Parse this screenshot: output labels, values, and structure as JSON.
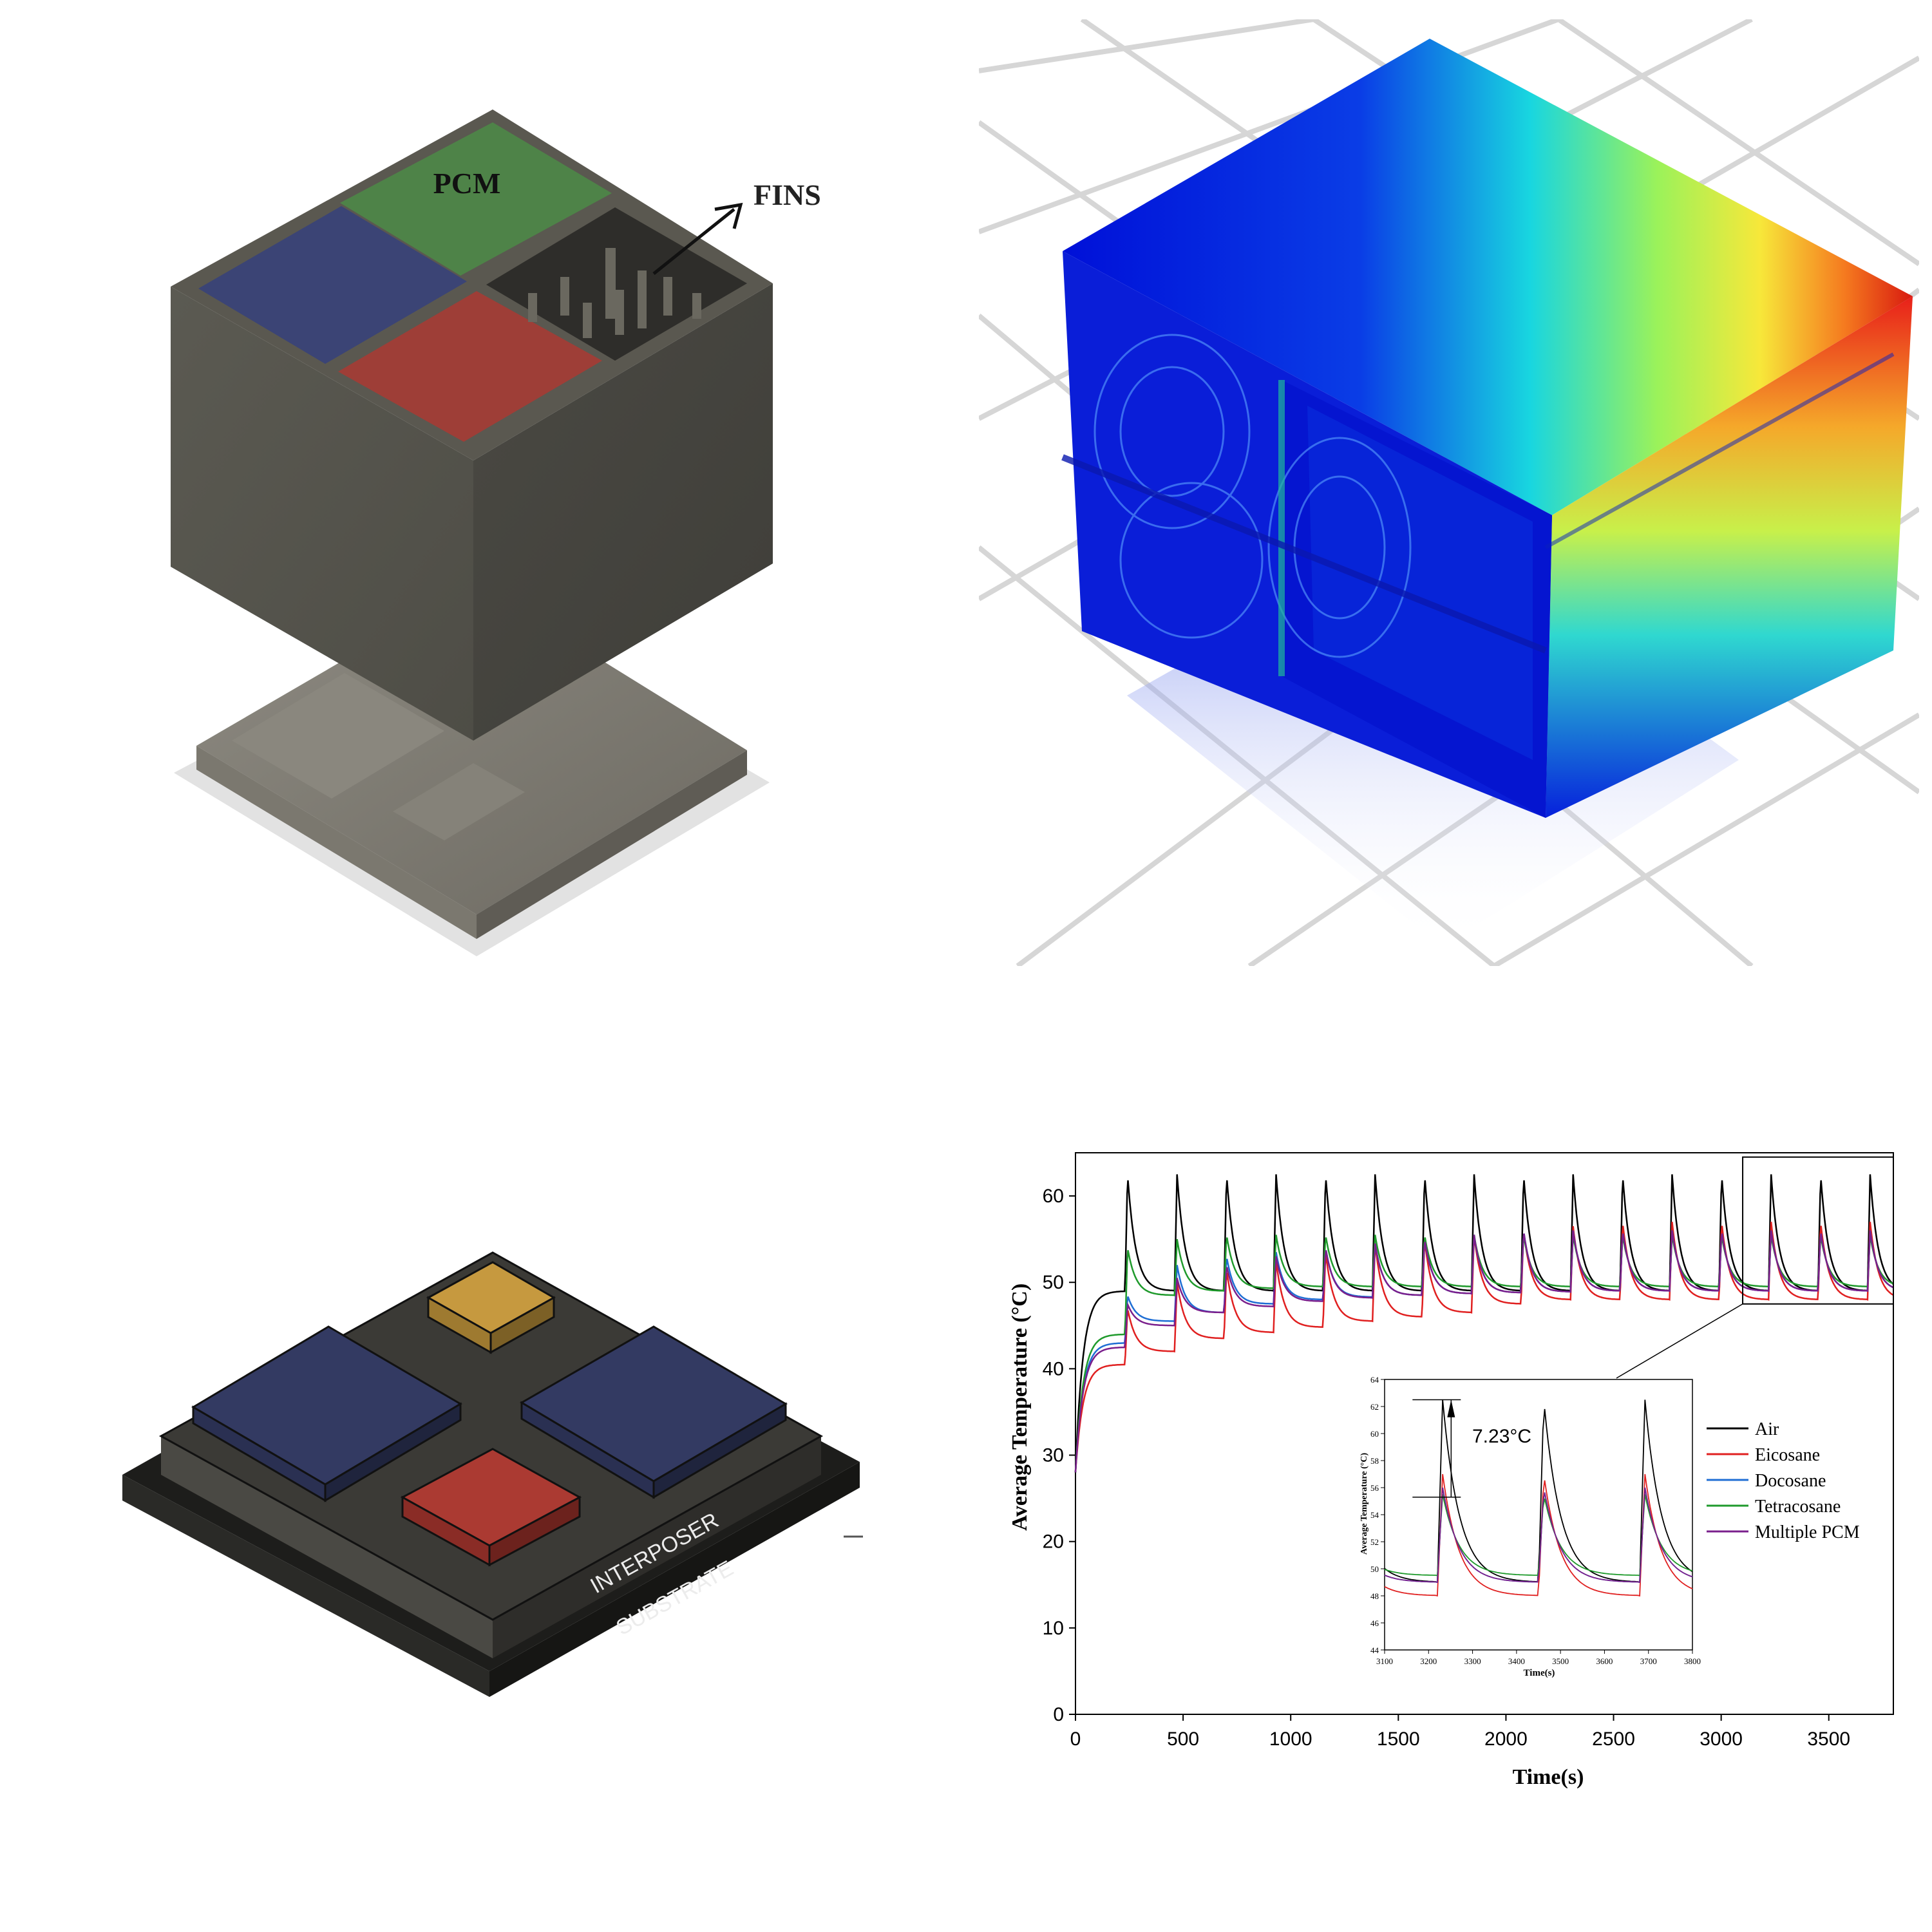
{
  "colors": {
    "housing": "#4f4e47",
    "pcm_green": "#4e8147",
    "pcm_blue": "#3a4372",
    "pcm_red": "#9d3d36",
    "chip_gold": "#b08a3e",
    "air": "#000000",
    "eicosane": "#e02020",
    "docosane": "#1f6ed4",
    "tetracosane": "#1f9a2c",
    "multiple_pcm": "#7a1f8c"
  },
  "panel_cad": {
    "pcm_label": "PCM",
    "fins_label": "FINS"
  },
  "panel_package": {
    "interposer_label": "INTERPOSER",
    "substrate_label": "SUBSTRATE"
  },
  "chart_data": {
    "type": "line",
    "xlabel": "Time(s)",
    "ylabel": "Average Temperature (°C)",
    "xlim": [
      0,
      3800
    ],
    "ylim": [
      0,
      65
    ],
    "xticks": [
      0,
      500,
      1000,
      1500,
      2000,
      2500,
      3000,
      3500
    ],
    "yticks": [
      0,
      10,
      20,
      30,
      40,
      50,
      60
    ],
    "grid": false,
    "legend_position": "right, below inset",
    "cycle_period_s": 230,
    "series": [
      {
        "name": "Air",
        "color": "#000000",
        "peaks": [
          62.5,
          62.5,
          62.5,
          62.5,
          62.5,
          62.5,
          62.5,
          62.5,
          62.5,
          62.5,
          62.5,
          62.5,
          62.5,
          62.5,
          62.5,
          62.5
        ],
        "troughs": [
          49.0,
          49.0,
          49.0,
          49.0,
          49.0,
          49.0,
          49.0,
          49.0,
          49.0,
          49.0,
          49.0,
          49.0,
          49.0,
          49.0,
          49.0,
          49.0
        ]
      },
      {
        "name": "Eicosane",
        "color": "#e02020",
        "peaks": [
          47.0,
          50.0,
          51.5,
          52.5,
          53.5,
          54.5,
          55.0,
          55.5,
          56.0,
          56.5,
          57.0,
          57.0,
          57.0,
          57.0,
          57.0,
          57.0
        ],
        "troughs": [
          40.5,
          42.0,
          43.5,
          44.2,
          44.8,
          45.5,
          46.0,
          46.5,
          47.5,
          48.0,
          48.0,
          48.0,
          48.0,
          48.0,
          48.0,
          48.0
        ]
      },
      {
        "name": "Docosane",
        "color": "#1f6ed4",
        "peaks": [
          48.5,
          52.0,
          53.0,
          53.5,
          54.0,
          54.5,
          55.0,
          55.5,
          56.0,
          56.0,
          56.0,
          56.0,
          56.0,
          56.0,
          56.0,
          56.0
        ],
        "troughs": [
          43.0,
          45.5,
          46.5,
          47.5,
          48.0,
          48.3,
          48.5,
          48.7,
          48.8,
          48.9,
          49.0,
          49.0,
          49.0,
          49.0,
          49.0,
          49.0
        ]
      },
      {
        "name": "Tetracosane",
        "color": "#1f9a2c",
        "peaks": [
          54.0,
          55.0,
          55.5,
          55.5,
          55.5,
          55.5,
          55.5,
          55.5,
          55.5,
          55.5,
          55.5,
          55.5,
          55.5,
          55.5,
          55.5,
          55.5
        ],
        "troughs": [
          44.0,
          48.5,
          49.0,
          49.3,
          49.5,
          49.5,
          49.5,
          49.5,
          49.5,
          49.5,
          49.5,
          49.5,
          49.5,
          49.5,
          49.5,
          49.5
        ]
      },
      {
        "name": "Multiple PCM",
        "color": "#7a1f8c",
        "peaks": [
          47.5,
          50.5,
          52.0,
          53.0,
          54.0,
          54.5,
          55.0,
          55.5,
          56.0,
          56.0,
          56.0,
          56.0,
          56.0,
          56.0,
          56.0,
          56.0
        ],
        "troughs": [
          42.5,
          45.0,
          46.5,
          47.2,
          47.8,
          48.2,
          48.5,
          48.7,
          48.8,
          48.9,
          49.0,
          49.0,
          49.0,
          49.0,
          49.0,
          49.0
        ]
      }
    ],
    "inset": {
      "xlabel": "Time(s)",
      "ylabel": "Average Temperature (°C)",
      "xlim": [
        3100,
        3800
      ],
      "ylim": [
        44,
        64
      ],
      "xticks": [
        3100,
        3200,
        3300,
        3400,
        3500,
        3600,
        3700,
        3800
      ],
      "yticks": [
        44,
        46,
        48,
        50,
        52,
        54,
        56,
        58,
        60,
        62,
        64
      ],
      "annotation": "7.23°C"
    }
  }
}
